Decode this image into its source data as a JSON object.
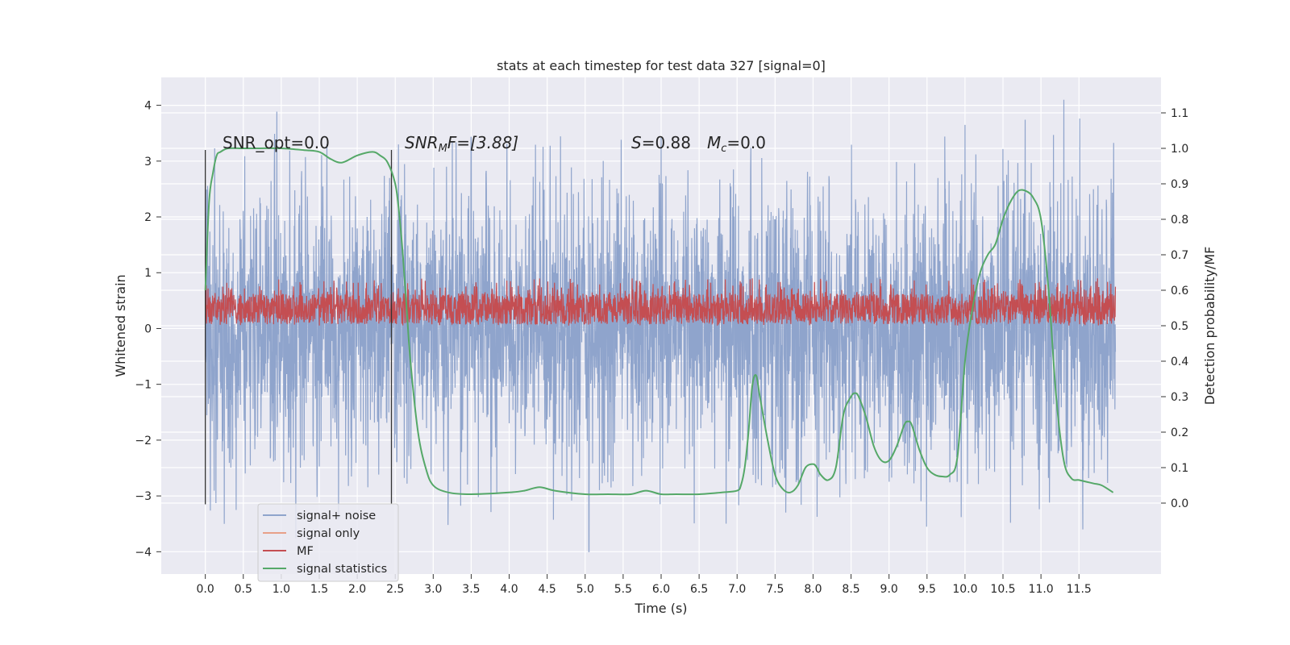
{
  "chart_data": {
    "type": "line",
    "title": "stats at each timestep for test data 327 [signal=0]",
    "xlabel": "Time (s)",
    "ylabel_left": "Whitened strain",
    "ylabel_right": "Detection probability/MF",
    "xlim": [
      -0.58,
      12.58
    ],
    "ylim_left": [
      -4.4,
      4.5
    ],
    "ylim_right": [
      -0.2,
      1.2
    ],
    "xticks": [
      "0.0",
      "0.5",
      "1.0",
      "1.5",
      "2.0",
      "2.5",
      "3.0",
      "3.5",
      "4.0",
      "4.5",
      "5.0",
      "5.5",
      "6.0",
      "6.5",
      "7.0",
      "7.5",
      "8.0",
      "8.5",
      "9.0",
      "9.5",
      "10.0",
      "10.5",
      "11.0",
      "11.5"
    ],
    "yticks_left": [
      "−4",
      "−3",
      "−2",
      "−1",
      "0",
      "1",
      "2",
      "3",
      "4"
    ],
    "yticks_right": [
      "0.0",
      "0.1",
      "0.2",
      "0.3",
      "0.4",
      "0.5",
      "0.6",
      "0.7",
      "0.8",
      "0.9",
      "1.0",
      "1.1"
    ],
    "grid": true,
    "legend_position": "lower-left",
    "annotations": {
      "snr_opt": "SNR_opt=0.0",
      "snr_mf_base": "SNR",
      "snr_mf_sub": "M",
      "snr_mf_rest": "F=[3.88]",
      "s_sym": "S",
      "s_val": "=0.88",
      "mc_sym": "M",
      "mc_sub": "c",
      "mc_val": "=0.0"
    },
    "vertical_markers": [
      0.0,
      2.45
    ],
    "series": [
      {
        "name": "signal+ noise",
        "axis": "left",
        "color": "#8fa4cc",
        "t_range": [
          0.0,
          11.98
        ],
        "description_range": [
          -4.0,
          4.1
        ],
        "peaks": [
          [
            0.25,
            -3.5
          ],
          [
            1.6,
            3.3
          ],
          [
            5.05,
            -4.0
          ],
          [
            10.0,
            3.65
          ],
          [
            11.3,
            4.1
          ],
          [
            11.55,
            -3.6
          ]
        ]
      },
      {
        "name": "signal only",
        "axis": "left",
        "color": "#e8a088",
        "x": [],
        "y": []
      },
      {
        "name": "MF",
        "axis": "left",
        "color": "#c44e52",
        "t_range": [
          0.0,
          11.98
        ],
        "band": [
          0.05,
          0.9
        ]
      },
      {
        "name": "signal statistics",
        "axis": "right",
        "color": "#55a868",
        "x": [
          0.0,
          0.05,
          0.1,
          0.15,
          0.2,
          0.3,
          0.5,
          0.7,
          1.0,
          1.3,
          1.5,
          1.65,
          1.8,
          2.0,
          2.2,
          2.3,
          2.4,
          2.5,
          2.55,
          2.6,
          2.65,
          2.7,
          2.8,
          2.9,
          3.0,
          3.2,
          3.5,
          4.0,
          4.2,
          4.4,
          4.6,
          5.0,
          5.3,
          5.6,
          5.8,
          6.0,
          6.2,
          6.5,
          6.8,
          7.0,
          7.05,
          7.1,
          7.15,
          7.2,
          7.25,
          7.3,
          7.4,
          7.5,
          7.6,
          7.7,
          7.8,
          7.9,
          8.0,
          8.05,
          8.1,
          8.2,
          8.3,
          8.4,
          8.5,
          8.55,
          8.6,
          8.7,
          8.8,
          8.9,
          9.0,
          9.1,
          9.2,
          9.25,
          9.3,
          9.4,
          9.5,
          9.6,
          9.7,
          9.8,
          9.9,
          10.0,
          10.1,
          10.2,
          10.3,
          10.4,
          10.5,
          10.6,
          10.7,
          10.8,
          10.9,
          11.0,
          11.1,
          11.2,
          11.3,
          11.4,
          11.5,
          11.6,
          11.7,
          11.8,
          11.95
        ],
        "y": [
          0.6,
          0.85,
          0.93,
          0.98,
          0.99,
          1.0,
          1.0,
          1.0,
          1.0,
          0.995,
          0.99,
          0.97,
          0.96,
          0.98,
          0.99,
          0.98,
          0.96,
          0.9,
          0.82,
          0.7,
          0.55,
          0.4,
          0.2,
          0.1,
          0.05,
          0.03,
          0.025,
          0.03,
          0.035,
          0.045,
          0.035,
          0.025,
          0.025,
          0.025,
          0.035,
          0.025,
          0.025,
          0.025,
          0.03,
          0.035,
          0.05,
          0.1,
          0.2,
          0.33,
          0.36,
          0.3,
          0.18,
          0.08,
          0.04,
          0.03,
          0.05,
          0.1,
          0.11,
          0.1,
          0.08,
          0.065,
          0.1,
          0.25,
          0.3,
          0.31,
          0.3,
          0.24,
          0.16,
          0.12,
          0.12,
          0.16,
          0.22,
          0.23,
          0.22,
          0.15,
          0.1,
          0.08,
          0.075,
          0.08,
          0.13,
          0.4,
          0.55,
          0.65,
          0.7,
          0.73,
          0.8,
          0.85,
          0.88,
          0.88,
          0.86,
          0.8,
          0.6,
          0.3,
          0.12,
          0.07,
          0.065,
          0.06,
          0.055,
          0.05,
          0.03
        ]
      }
    ]
  }
}
